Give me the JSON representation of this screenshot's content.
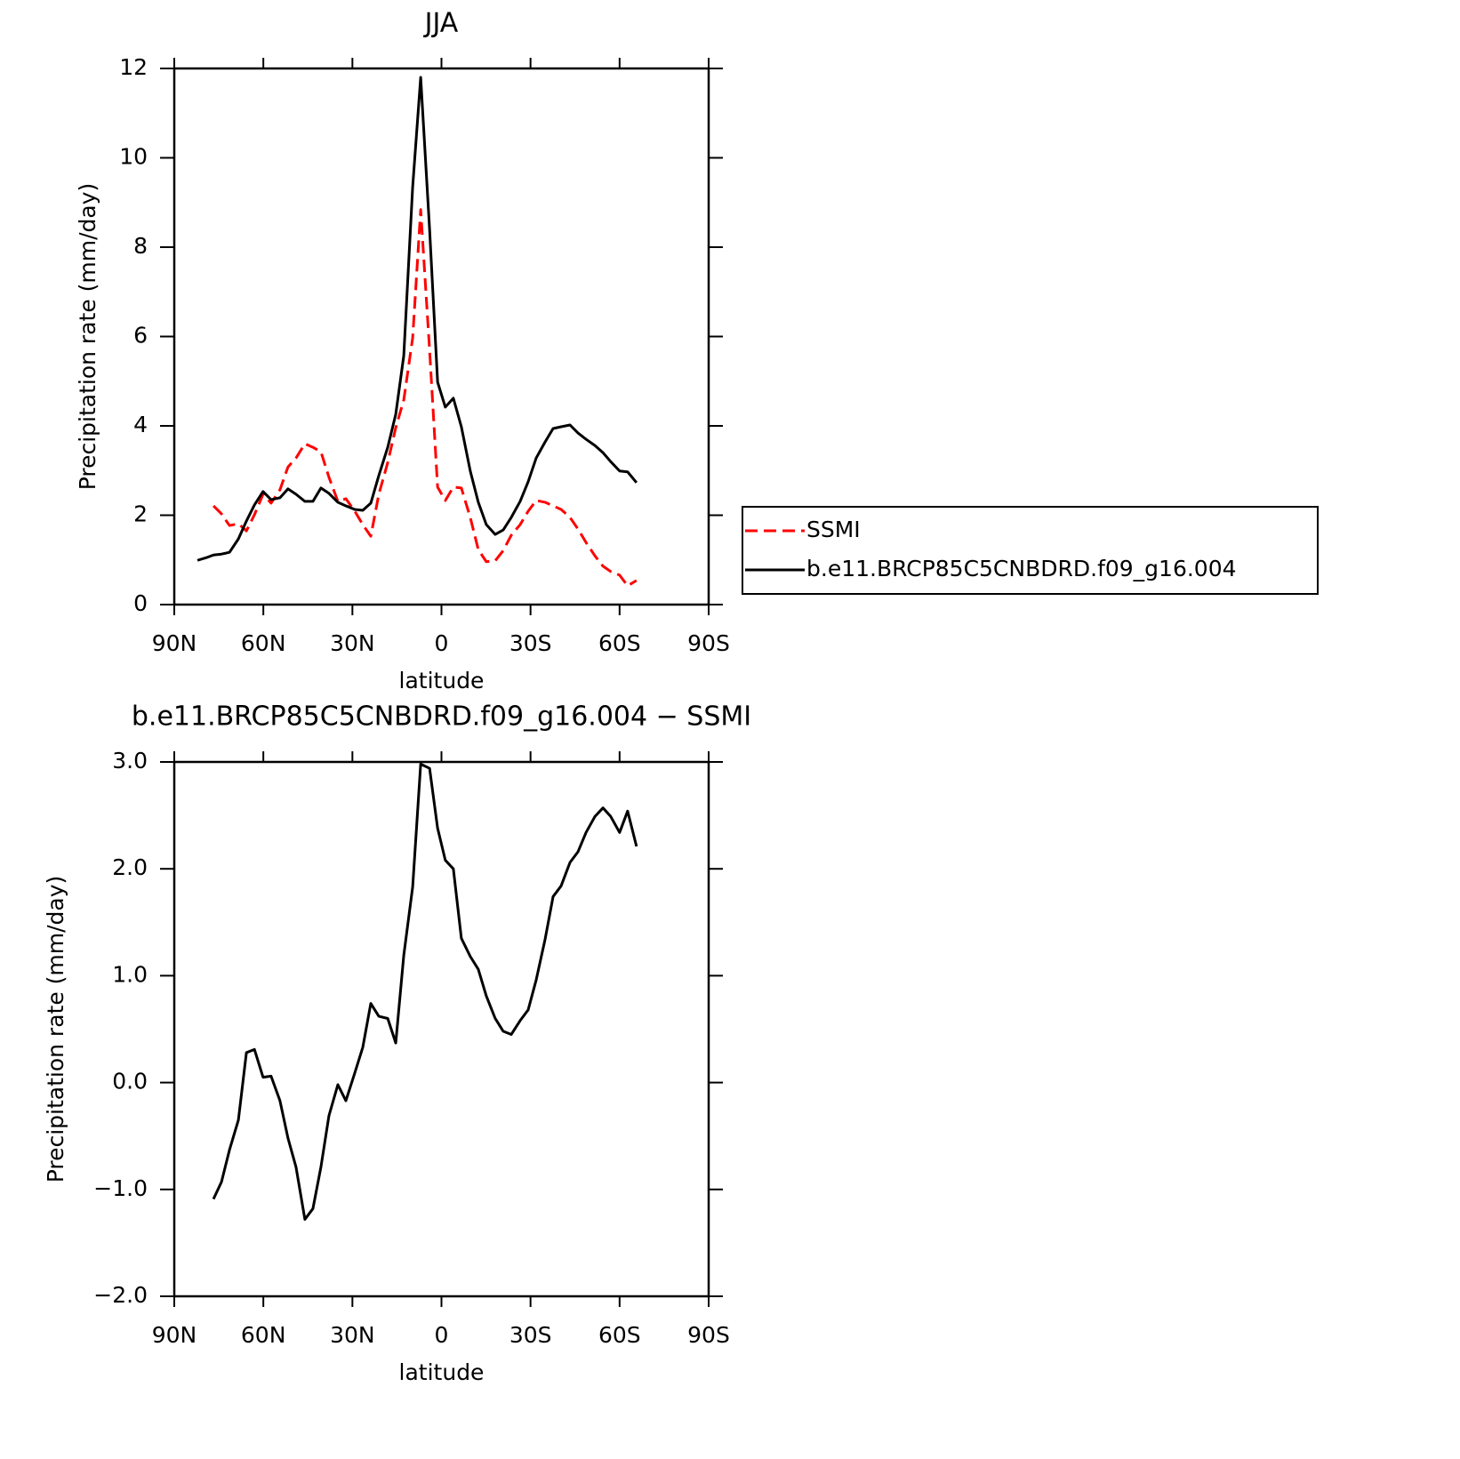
{
  "chart_data": [
    {
      "type": "line",
      "title": "JJA",
      "xlabel": "latitude",
      "ylabel": "Precipitation rate (mm/day)",
      "x": [
        82.2,
        79.2,
        76.8,
        74.1,
        71.4,
        68.4,
        65.7,
        63.0,
        60.1,
        57.4,
        54.4,
        51.7,
        49.0,
        46.0,
        43.3,
        40.6,
        37.9,
        34.9,
        32.2,
        29.2,
        26.5,
        23.8,
        21.1,
        18.1,
        15.4,
        12.7,
        9.7,
        7.0,
        4.0,
        1.3,
        -1.3,
        -4.0,
        -6.7,
        -9.7,
        -12.4,
        -15.1,
        -18.1,
        -20.8,
        -23.5,
        -26.5,
        -29.2,
        -31.9,
        -34.9,
        -37.6,
        -40.3,
        -43.3,
        -46.0,
        -48.7,
        -51.7,
        -54.4,
        -57.0,
        -60.0,
        -62.7,
        -65.7
      ],
      "series": [
        {
          "name": "SSMI",
          "color": "#ff0000",
          "style": "dashed",
          "values": [
            null,
            null,
            2.21,
            2.03,
            1.77,
            1.81,
            1.65,
            2.01,
            2.47,
            2.27,
            2.57,
            3.08,
            3.28,
            3.6,
            3.52,
            3.42,
            2.85,
            2.31,
            2.37,
            2.09,
            1.79,
            1.53,
            2.47,
            3.18,
            3.96,
            4.58,
            5.97,
            8.84,
            5.7,
            2.63,
            2.33,
            2.63,
            2.61,
            1.95,
            1.23,
            0.96,
            0.98,
            1.21,
            1.55,
            1.79,
            2.09,
            2.33,
            2.29,
            2.21,
            2.13,
            1.95,
            1.69,
            1.39,
            1.09,
            0.86,
            0.74,
            0.66,
            0.42,
            0.54
          ]
        },
        {
          "name": "b.e11.BRCP85C5CNBDRD.f09_g16.004",
          "color": "#000000",
          "style": "solid",
          "values": [
            0.99,
            1.05,
            1.11,
            1.13,
            1.17,
            1.47,
            1.87,
            2.23,
            2.53,
            2.35,
            2.39,
            2.59,
            2.47,
            2.31,
            2.31,
            2.61,
            2.49,
            2.29,
            2.21,
            2.13,
            2.11,
            2.27,
            2.89,
            3.52,
            4.26,
            5.57,
            9.35,
            11.8,
            8.4,
            4.98,
            4.42,
            4.62,
            3.98,
            2.99,
            2.29,
            1.79,
            1.57,
            1.67,
            1.95,
            2.31,
            2.75,
            3.28,
            3.64,
            3.94,
            3.98,
            4.02,
            3.84,
            3.7,
            3.56,
            3.4,
            3.2,
            2.99,
            2.97,
            2.73
          ]
        }
      ],
      "xlim": [
        90,
        -90
      ],
      "xticks": [
        {
          "value": 90,
          "label": "90N"
        },
        {
          "value": 60,
          "label": "60N"
        },
        {
          "value": 30,
          "label": "30N"
        },
        0,
        {
          "value": -30,
          "label": "30S"
        },
        {
          "value": -60,
          "label": "60S"
        },
        {
          "value": -90,
          "label": "90S"
        }
      ],
      "ylim": [
        0,
        12
      ],
      "yticks": [
        0,
        2,
        4,
        6,
        8,
        10,
        12
      ],
      "legend": "right"
    },
    {
      "type": "line",
      "title": "b.e11.BRCP85C5CNBDRD.f09_g16.004 − SSMI",
      "xlabel": "latitude",
      "ylabel": "Precipitation rate (mm/day)",
      "x": [
        76.8,
        74.1,
        71.4,
        68.4,
        65.7,
        63.0,
        60.1,
        57.4,
        54.4,
        51.7,
        49.0,
        46.0,
        43.3,
        40.6,
        37.9,
        34.9,
        32.2,
        29.2,
        26.5,
        23.8,
        21.1,
        18.1,
        15.4,
        12.7,
        9.7,
        7.0,
        4.0,
        1.3,
        -1.3,
        -4.0,
        -6.7,
        -9.7,
        -12.4,
        -15.1,
        -18.1,
        -20.8,
        -23.5,
        -26.5,
        -29.2,
        -31.9,
        -34.9,
        -37.6,
        -40.3,
        -43.3,
        -46.0,
        -48.7,
        -51.7,
        -54.4,
        -57.0,
        -60.0,
        -62.7,
        -65.7
      ],
      "color": "#000000",
      "values": [
        -1.09,
        -0.93,
        -0.63,
        -0.35,
        0.28,
        0.31,
        0.05,
        0.06,
        -0.17,
        -0.52,
        -0.79,
        -1.28,
        -1.18,
        -0.79,
        -0.31,
        -0.02,
        -0.17,
        0.09,
        0.33,
        0.74,
        0.62,
        0.6,
        0.37,
        1.19,
        1.83,
        2.98,
        2.94,
        2.38,
        2.08,
        2.0,
        1.35,
        1.18,
        1.06,
        0.81,
        0.6,
        0.48,
        0.45,
        0.58,
        0.68,
        0.96,
        1.34,
        1.74,
        1.84,
        2.06,
        2.16,
        2.34,
        2.49,
        2.57,
        2.49,
        2.34,
        2.54,
        2.21
      ],
      "xlim": [
        90,
        -90
      ],
      "xticks": [
        {
          "value": 90,
          "label": "90N"
        },
        {
          "value": 60,
          "label": "60N"
        },
        {
          "value": 30,
          "label": "30N"
        },
        0,
        {
          "value": -30,
          "label": "30S"
        },
        {
          "value": -60,
          "label": "60S"
        },
        {
          "value": -90,
          "label": "90S"
        }
      ],
      "ylim": [
        -2,
        3
      ],
      "yticks": [
        {
          "value": -2,
          "label": "−2.0"
        },
        {
          "value": -1,
          "label": "−1.0"
        },
        {
          "value": 0,
          "label": "0.0"
        },
        {
          "value": 1,
          "label": "1.0"
        },
        {
          "value": 2,
          "label": "2.0"
        },
        {
          "value": 3,
          "label": "3.0"
        }
      ]
    }
  ]
}
